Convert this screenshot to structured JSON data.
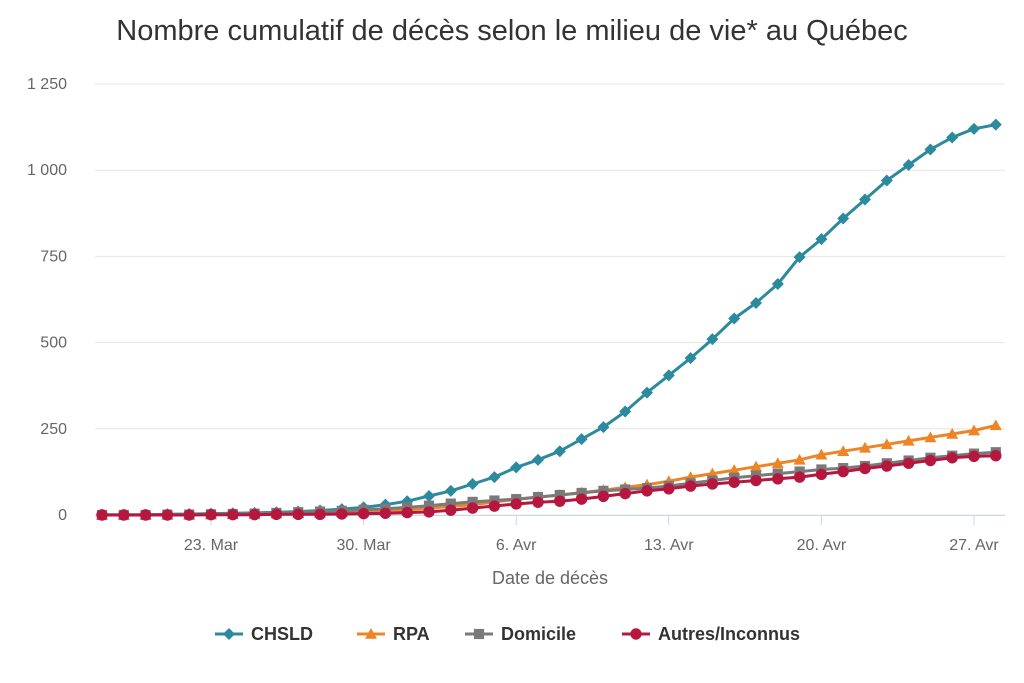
{
  "chart_data": {
    "type": "line",
    "title": "Nombre cumulatif de décès selon le milieu de vie* au Québec",
    "xlabel": "Date de décès",
    "ylabel": "",
    "ylim": [
      0,
      1250
    ],
    "yticks": [
      0,
      250,
      500,
      750,
      1000,
      1250
    ],
    "ytick_labels": [
      "0",
      "250",
      "500",
      "750",
      "1 000",
      "1 250"
    ],
    "xticks": [
      {
        "date": "2020-03-23",
        "label": "23. Mar"
      },
      {
        "date": "2020-03-30",
        "label": "30. Mar"
      },
      {
        "date": "2020-04-06",
        "label": "6. Avr"
      },
      {
        "date": "2020-04-13",
        "label": "13. Avr"
      },
      {
        "date": "2020-04-20",
        "label": "20. Avr"
      },
      {
        "date": "2020-04-27",
        "label": "27. Avr"
      }
    ],
    "grid": true,
    "legend_position": "bottom",
    "x": [
      "2020-03-18",
      "2020-03-19",
      "2020-03-20",
      "2020-03-21",
      "2020-03-22",
      "2020-03-23",
      "2020-03-24",
      "2020-03-25",
      "2020-03-26",
      "2020-03-27",
      "2020-03-28",
      "2020-03-29",
      "2020-03-30",
      "2020-03-31",
      "2020-04-01",
      "2020-04-02",
      "2020-04-03",
      "2020-04-04",
      "2020-04-05",
      "2020-04-06",
      "2020-04-07",
      "2020-04-08",
      "2020-04-09",
      "2020-04-10",
      "2020-04-11",
      "2020-04-12",
      "2020-04-13",
      "2020-04-14",
      "2020-04-15",
      "2020-04-16",
      "2020-04-17",
      "2020-04-18",
      "2020-04-19",
      "2020-04-20",
      "2020-04-21",
      "2020-04-22",
      "2020-04-23",
      "2020-04-24",
      "2020-04-25",
      "2020-04-26",
      "2020-04-27",
      "2020-04-28"
    ],
    "series": [
      {
        "name": "CHSLD",
        "color": "#2b8a9e",
        "marker": "diamond",
        "values": [
          1,
          1,
          1,
          2,
          3,
          4,
          5,
          6,
          8,
          10,
          13,
          17,
          22,
          30,
          40,
          55,
          70,
          90,
          110,
          138,
          160,
          185,
          220,
          255,
          300,
          355,
          405,
          455,
          510,
          570,
          615,
          670,
          748,
          800,
          860,
          915,
          970,
          1015,
          1060,
          1095,
          1120,
          1132
        ]
      },
      {
        "name": "RPA",
        "color": "#ed8426",
        "marker": "triangle",
        "values": [
          0,
          0,
          0,
          1,
          1,
          2,
          2,
          3,
          4,
          5,
          6,
          8,
          10,
          12,
          15,
          20,
          25,
          30,
          38,
          45,
          52,
          58,
          65,
          72,
          80,
          88,
          98,
          110,
          120,
          130,
          140,
          150,
          160,
          175,
          185,
          195,
          205,
          215,
          225,
          235,
          245,
          260
        ]
      },
      {
        "name": "Domicile",
        "color": "#7a7a7a",
        "marker": "square",
        "values": [
          0,
          0,
          0,
          1,
          1,
          2,
          3,
          4,
          6,
          8,
          10,
          12,
          15,
          18,
          22,
          27,
          33,
          38,
          42,
          46,
          52,
          58,
          64,
          70,
          74,
          78,
          84,
          92,
          100,
          108,
          114,
          120,
          126,
          132,
          136,
          142,
          150,
          158,
          166,
          172,
          178,
          182
        ]
      },
      {
        "name": "Autres/Inconnus",
        "color": "#b5173f",
        "marker": "circle",
        "values": [
          0,
          0,
          0,
          0,
          0,
          1,
          1,
          1,
          2,
          2,
          2,
          3,
          4,
          5,
          7,
          9,
          14,
          20,
          26,
          32,
          37,
          40,
          46,
          54,
          62,
          70,
          76,
          84,
          90,
          95,
          100,
          105,
          110,
          118,
          126,
          135,
          142,
          150,
          158,
          166,
          170,
          172
        ]
      }
    ]
  }
}
